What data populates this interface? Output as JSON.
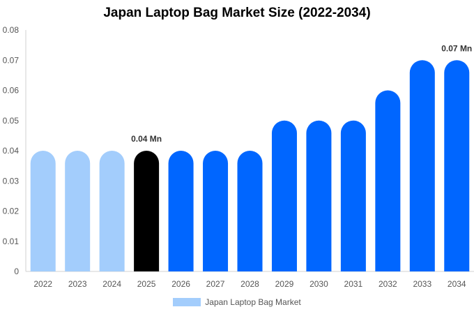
{
  "chart_data": {
    "type": "bar",
    "title": "Japan Laptop Bag Market Size (2022-2034)",
    "categories": [
      "2022",
      "2023",
      "2024",
      "2025",
      "2026",
      "2027",
      "2028",
      "2029",
      "2030",
      "2031",
      "2032",
      "2033",
      "2034"
    ],
    "series": [
      {
        "name": "Japan Laptop Bag Market",
        "values": [
          0.04,
          0.04,
          0.04,
          0.04,
          0.04,
          0.04,
          0.04,
          0.05,
          0.05,
          0.05,
          0.06,
          0.07,
          0.07
        ]
      }
    ],
    "bar_colors": [
      "#a3cdfc",
      "#a3cdfc",
      "#a3cdfc",
      "#000000",
      "#0066ff",
      "#0066ff",
      "#0066ff",
      "#0066ff",
      "#0066ff",
      "#0066ff",
      "#0066ff",
      "#0066ff",
      "#0066ff"
    ],
    "data_labels": [
      {
        "category": "2025",
        "text": "0.04 Mn"
      },
      {
        "category": "2034",
        "text": "0.07 Mn"
      }
    ],
    "ylim": [
      0,
      0.08
    ],
    "yticks": [
      "0",
      "0.01",
      "0.02",
      "0.03",
      "0.04",
      "0.05",
      "0.06",
      "0.07",
      "0.08"
    ],
    "xlabel": "",
    "ylabel": "",
    "grid": false,
    "legend_position": "bottom",
    "legend_color": "#a3cdfc"
  }
}
